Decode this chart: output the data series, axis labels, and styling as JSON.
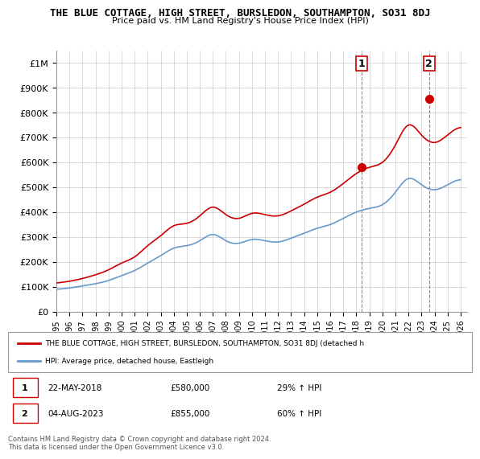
{
  "title": "THE BLUE COTTAGE, HIGH STREET, BURSLEDON, SOUTHAMPTON, SO31 8DJ",
  "subtitle": "Price paid vs. HM Land Registry's House Price Index (HPI)",
  "xlabel": "",
  "ylabel": "",
  "ylim": [
    0,
    1050000
  ],
  "xlim_start": 1995.0,
  "xlim_end": 2026.5,
  "sale1_date": 2018.386,
  "sale1_price": 580000,
  "sale1_label": "1",
  "sale2_date": 2023.586,
  "sale2_price": 855000,
  "sale2_label": "2",
  "red_line_color": "#cc0000",
  "blue_line_color": "#6699cc",
  "marker_color": "#cc0000",
  "legend_red_label": "THE BLUE COTTAGE, HIGH STREET, BURSLEDON, SOUTHAMPTON, SO31 8DJ (detached h",
  "legend_blue_label": "HPI: Average price, detached house, Eastleigh",
  "table_row1": "1    22-MAY-2018    £580,000    29% ↑ HPI",
  "table_row2": "2    04-AUG-2023    £855,000    60% ↑ HPI",
  "footer": "Contains HM Land Registry data © Crown copyright and database right 2024.\nThis data is licensed under the Open Government Licence v3.0.",
  "yticks": [
    0,
    100000,
    200000,
    300000,
    400000,
    500000,
    600000,
    700000,
    800000,
    900000,
    1000000
  ],
  "ytick_labels": [
    "£0",
    "£100K",
    "£200K",
    "£300K",
    "£400K",
    "£500K",
    "£600K",
    "£700K",
    "£800K",
    "£900K",
    "£1M"
  ]
}
